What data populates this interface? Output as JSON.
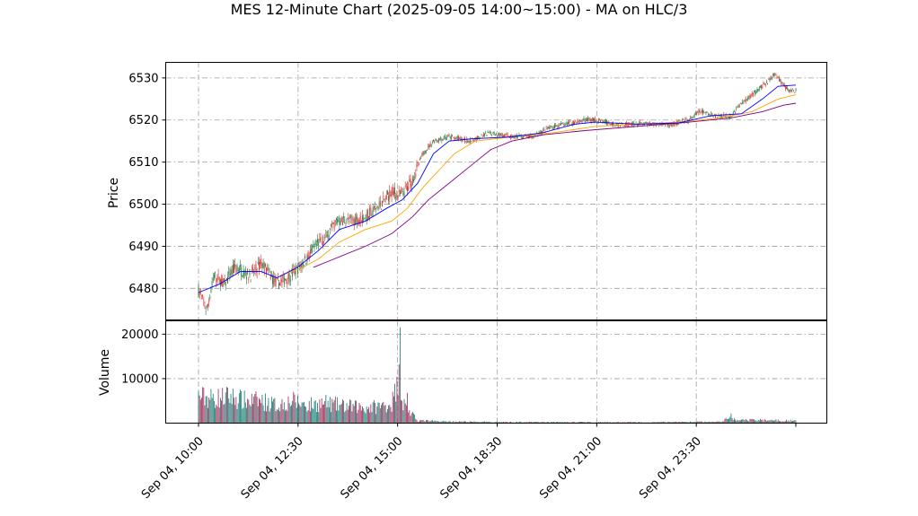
{
  "chart_data": {
    "type": "candlestick",
    "title": "MES 12-Minute Chart (2025-09-05 14:00~15:00) - MA on HLC/3",
    "ylabel_price": "Price",
    "ylabel_volume": "Volume",
    "price_ylim": [
      6472.5,
      6533.7
    ],
    "price_yticks": [
      6480,
      6490,
      6500,
      6510,
      6520,
      6530
    ],
    "volume_ylim": [
      0,
      23000
    ],
    "volume_yticks": [
      10000,
      20000
    ],
    "x_tick_labels": [
      "Sep 04, 10:00",
      "Sep 04, 12:30",
      "Sep 04, 15:00",
      "Sep 04, 18:30",
      "Sep 04, 21:00",
      "Sep 04, 23:30"
    ],
    "grid": true,
    "colors": {
      "up": "#1f7a3d",
      "down": "#d62728",
      "vol_up": "#137b73",
      "vol_down": "#9b2c58",
      "ma_fast": "#0000ff",
      "ma_mid": "#ffa500",
      "ma_slow": "#800080"
    },
    "price_path": [
      [
        0,
        6479.5
      ],
      [
        8,
        6475
      ],
      [
        15,
        6483
      ],
      [
        25,
        6481
      ],
      [
        35,
        6485
      ],
      [
        50,
        6483
      ],
      [
        60,
        6486
      ],
      [
        75,
        6481
      ],
      [
        88,
        6483
      ],
      [
        100,
        6486
      ],
      [
        112,
        6490
      ],
      [
        122,
        6492
      ],
      [
        132,
        6496
      ],
      [
        145,
        6496
      ],
      [
        160,
        6497
      ],
      [
        175,
        6500
      ],
      [
        185,
        6503
      ],
      [
        195,
        6502
      ],
      [
        205,
        6506
      ],
      [
        215,
        6512
      ],
      [
        225,
        6515
      ],
      [
        240,
        6516
      ],
      [
        260,
        6515
      ],
      [
        280,
        6517
      ],
      [
        300,
        6516
      ],
      [
        320,
        6516
      ],
      [
        335,
        6518
      ],
      [
        350,
        6519
      ],
      [
        370,
        6520
      ],
      [
        380,
        6520
      ],
      [
        400,
        6519
      ],
      [
        420,
        6519
      ],
      [
        440,
        6519
      ],
      [
        455,
        6519
      ],
      [
        470,
        6520
      ],
      [
        480,
        6522
      ],
      [
        495,
        6521
      ],
      [
        510,
        6521
      ],
      [
        520,
        6524
      ],
      [
        535,
        6527
      ],
      [
        545,
        6529
      ],
      [
        552,
        6531
      ],
      [
        558,
        6529
      ],
      [
        565,
        6527
      ],
      [
        572,
        6527
      ]
    ],
    "ma_fast": [
      [
        0,
        6479
      ],
      [
        20,
        6481
      ],
      [
        40,
        6484
      ],
      [
        60,
        6484
      ],
      [
        75,
        6482.5
      ],
      [
        95,
        6485
      ],
      [
        115,
        6489
      ],
      [
        135,
        6494
      ],
      [
        160,
        6496
      ],
      [
        180,
        6499
      ],
      [
        195,
        6501
      ],
      [
        210,
        6505
      ],
      [
        225,
        6512
      ],
      [
        240,
        6515
      ],
      [
        260,
        6515.5
      ],
      [
        300,
        6516
      ],
      [
        330,
        6517
      ],
      [
        360,
        6519
      ],
      [
        380,
        6519.5
      ],
      [
        420,
        6519
      ],
      [
        460,
        6519.3
      ],
      [
        490,
        6521
      ],
      [
        520,
        6521.5
      ],
      [
        540,
        6525
      ],
      [
        555,
        6528
      ],
      [
        572,
        6528.3
      ]
    ],
    "ma_mid": [
      [
        78,
        6483
      ],
      [
        100,
        6485
      ],
      [
        115,
        6487
      ],
      [
        135,
        6491
      ],
      [
        160,
        6494
      ],
      [
        185,
        6496
      ],
      [
        200,
        6499
      ],
      [
        215,
        6504
      ],
      [
        230,
        6508
      ],
      [
        245,
        6512
      ],
      [
        265,
        6515
      ],
      [
        300,
        6516
      ],
      [
        340,
        6517
      ],
      [
        380,
        6518.5
      ],
      [
        420,
        6519
      ],
      [
        460,
        6519.5
      ],
      [
        500,
        6520.5
      ],
      [
        530,
        6522
      ],
      [
        555,
        6525
      ],
      [
        572,
        6526
      ]
    ],
    "ma_slow": [
      [
        110,
        6485
      ],
      [
        130,
        6487
      ],
      [
        160,
        6490
      ],
      [
        185,
        6493
      ],
      [
        205,
        6497
      ],
      [
        220,
        6501
      ],
      [
        240,
        6505
      ],
      [
        260,
        6509
      ],
      [
        280,
        6513
      ],
      [
        300,
        6515
      ],
      [
        330,
        6516.5
      ],
      [
        370,
        6517.5
      ],
      [
        420,
        6518.5
      ],
      [
        470,
        6519.5
      ],
      [
        510,
        6520.5
      ],
      [
        540,
        6522
      ],
      [
        560,
        6523.5
      ],
      [
        572,
        6524
      ]
    ],
    "volume_profile": [
      [
        0,
        6000
      ],
      [
        15,
        5500
      ],
      [
        30,
        6000
      ],
      [
        45,
        5000
      ],
      [
        60,
        5000
      ],
      [
        75,
        4000
      ],
      [
        90,
        5000
      ],
      [
        105,
        4000
      ],
      [
        120,
        4500
      ],
      [
        140,
        3800
      ],
      [
        160,
        3500
      ],
      [
        175,
        3800
      ],
      [
        185,
        4500
      ],
      [
        190,
        8000
      ],
      [
        192,
        13000
      ],
      [
        193,
        21500
      ],
      [
        195,
        5000
      ],
      [
        200,
        3000
      ],
      [
        210,
        600
      ],
      [
        230,
        400
      ],
      [
        280,
        250
      ],
      [
        400,
        200
      ],
      [
        500,
        300
      ],
      [
        510,
        1500
      ],
      [
        515,
        600
      ],
      [
        540,
        700
      ],
      [
        572,
        500
      ]
    ]
  }
}
